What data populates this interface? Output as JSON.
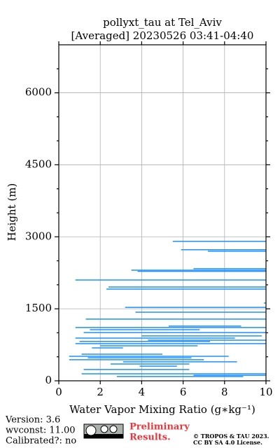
{
  "chart_data": {
    "type": "segment",
    "title": [
      "pollyxt_tau at Tel_Aviv",
      "[Averaged] 20230526 03:41-04:40"
    ],
    "xlabel": "Water Vapor Mixing Ratio (g∗kg⁻¹)",
    "ylabel": "Height (m)",
    "xlim": [
      0,
      10
    ],
    "ylim": [
      0,
      7000
    ],
    "xticks": [
      0,
      2,
      4,
      6,
      8,
      10
    ],
    "yticks": [
      0,
      1500,
      3000,
      4500,
      6000
    ],
    "yminorticks": [
      500,
      1000,
      2000,
      2500,
      3500,
      4000,
      5000,
      5500,
      6500
    ],
    "grid": true,
    "color": "#1e90ff",
    "y": [
      2905,
      2730,
      2700,
      2335,
      2305,
      2280,
      2100,
      1955,
      1910,
      1620,
      1530,
      1430,
      1285,
      1140,
      1110,
      1065,
      1005,
      935,
      890,
      845,
      820,
      775,
      730,
      685,
      555,
      510,
      480,
      440,
      395,
      350,
      305,
      235,
      145,
      115,
      90
    ],
    "x_start": [
      5.5,
      5.9,
      7.2,
      6.5,
      3.5,
      3.8,
      0.8,
      2.4,
      2.3,
      9.9,
      3.2,
      3.7,
      1.3,
      5.3,
      0.8,
      1.5,
      1.2,
      4.0,
      0.8,
      4.3,
      1.0,
      0.8,
      2.0,
      1.6,
      1.1,
      0.5,
      1.4,
      0.5,
      3.1,
      2.5,
      3.9,
      1.2,
      1.1,
      6.5,
      2.8
    ],
    "x_end": [
      10,
      10,
      10,
      10,
      10,
      10,
      10,
      10,
      10,
      10,
      10,
      10,
      10,
      8.8,
      10,
      6.8,
      10,
      9.8,
      8.5,
      10,
      7.3,
      10,
      6.7,
      3.1,
      5.0,
      8.2,
      6.4,
      7.0,
      8.6,
      6.3,
      5.7,
      6.3,
      10,
      10,
      8.9
    ]
  },
  "footer": {
    "info": [
      "Version: 3.6",
      "wvconst:  11.00",
      "Calibrated?: no"
    ],
    "notice": [
      "Preliminary",
      "Results."
    ],
    "copyright": [
      "© TROPOS & TAU 2023.",
      "CC BY SA 4.0 License."
    ]
  }
}
